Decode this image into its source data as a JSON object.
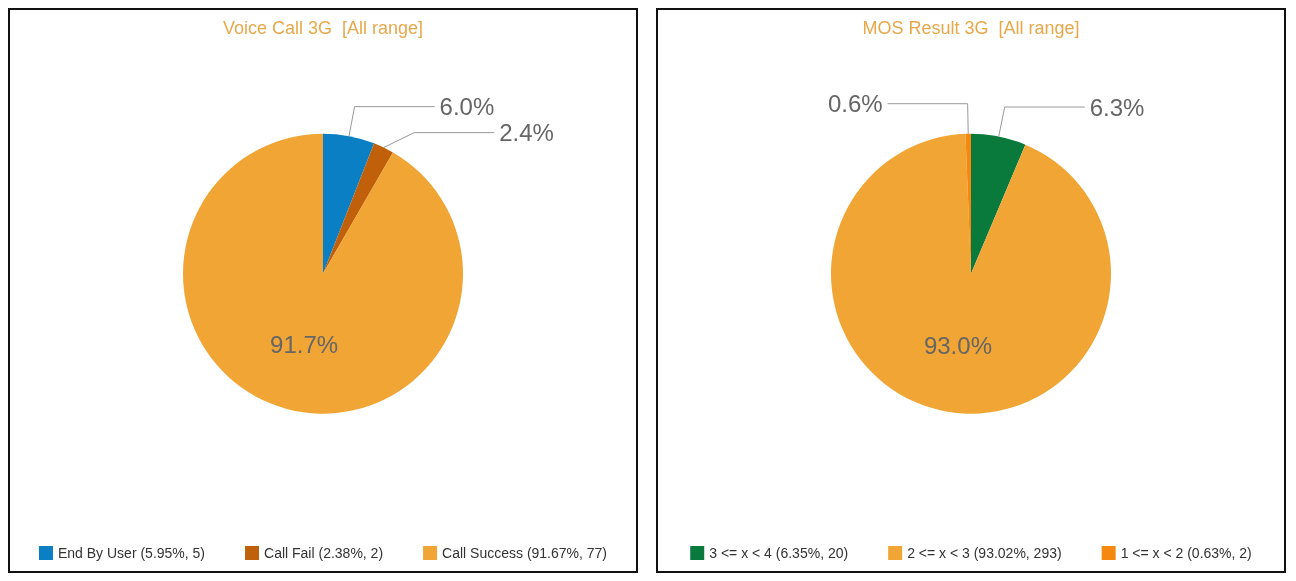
{
  "chart_data": [
    {
      "type": "pie",
      "title": "Voice Call 3G  [All range]",
      "categories": [
        "End By User (5.95%, 5)",
        "Call Fail (2.38%, 2)",
        "Call Success (91.67%, 77)"
      ],
      "values": [
        5.95,
        2.38,
        91.67
      ],
      "colors": [
        "#0a7fc4",
        "#c0600a",
        "#f0a535"
      ],
      "value_labels": [
        "6.0%",
        "2.4%",
        "91.7%"
      ],
      "legend": "bottom"
    },
    {
      "type": "pie",
      "title": "MOS Result 3G  [All range]",
      "categories": [
        "3 <= x < 4 (6.35%, 20)",
        "2 <= x < 3 (93.02%, 293)",
        "1 <= x < 2 (0.63%, 2)"
      ],
      "values": [
        6.35,
        93.02,
        0.63
      ],
      "colors": [
        "#0a7a3c",
        "#f0a535",
        "#f5880f"
      ],
      "value_labels": [
        "6.3%",
        "93.0%",
        "0.6%"
      ],
      "legend": "bottom"
    }
  ]
}
